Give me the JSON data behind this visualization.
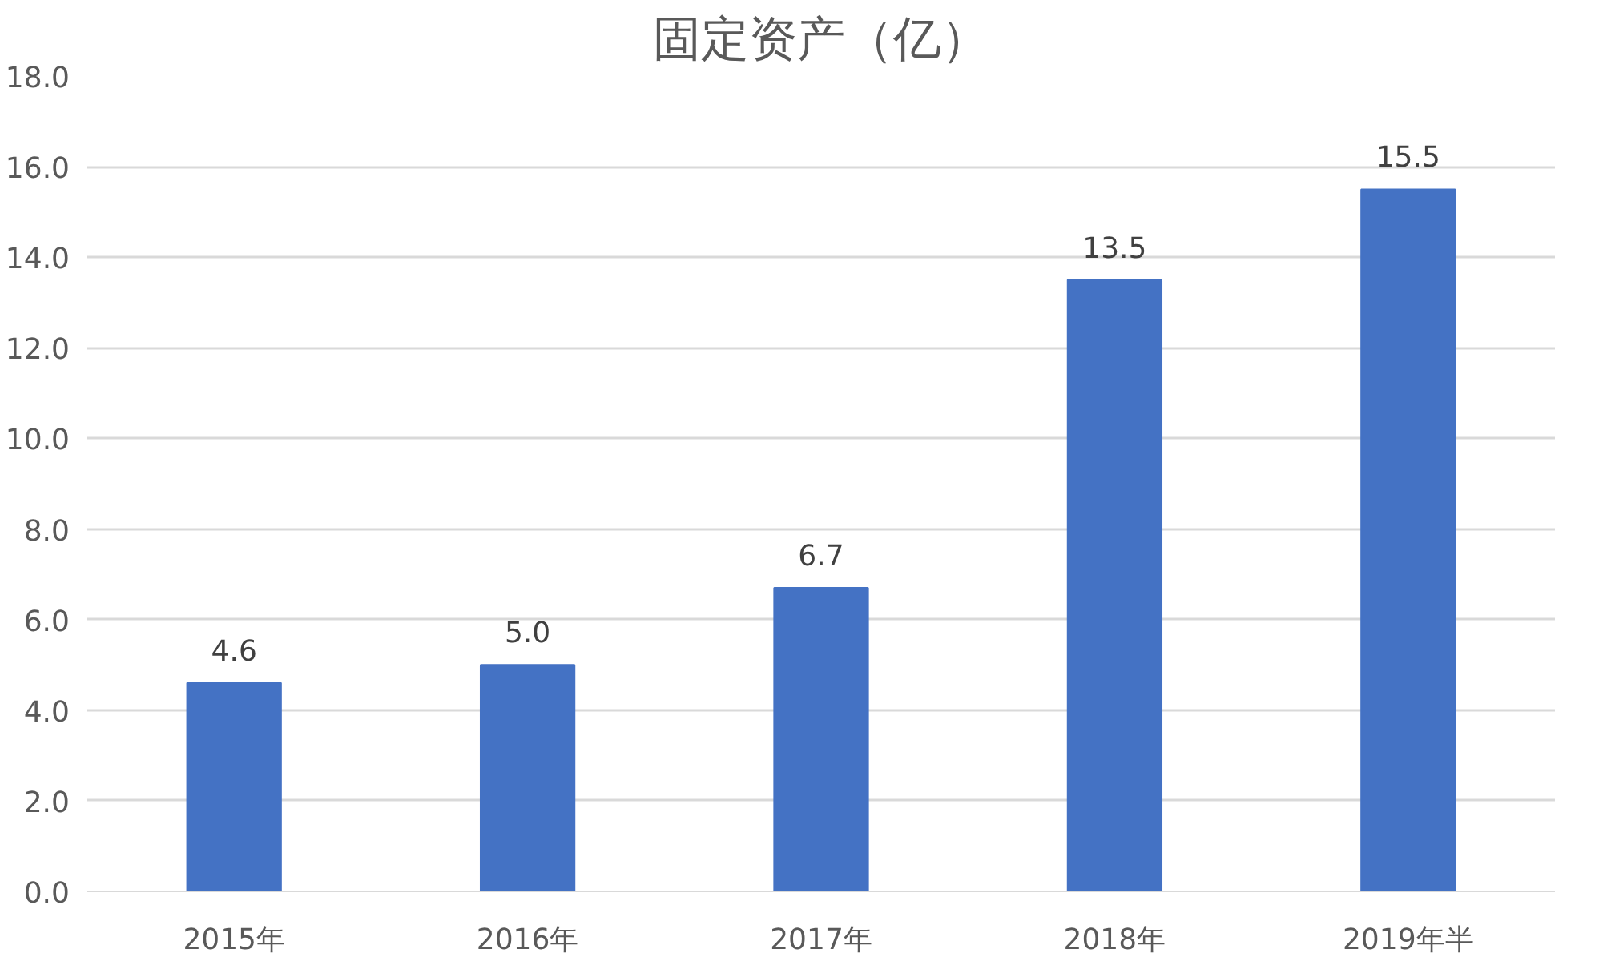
{
  "chart_data": {
    "type": "bar",
    "title": "固定资产（亿）",
    "categories": [
      "2015年",
      "2016年",
      "2017年",
      "2018年",
      "2019年半"
    ],
    "values": [
      4.6,
      5.0,
      6.7,
      13.5,
      15.5
    ],
    "value_labels": [
      "4.6",
      "5.0",
      "6.7",
      "13.5",
      "15.5"
    ],
    "color": "#4472c4",
    "ylim": [
      0,
      18
    ],
    "yticks": [
      {
        "value": 0,
        "label": "0.0"
      },
      {
        "value": 2,
        "label": "2.0"
      },
      {
        "value": 4,
        "label": "4.0"
      },
      {
        "value": 6,
        "label": "6.0"
      },
      {
        "value": 8,
        "label": "8.0"
      },
      {
        "value": 10,
        "label": "10.0"
      },
      {
        "value": 12,
        "label": "12.0"
      },
      {
        "value": 14,
        "label": "14.0"
      },
      {
        "value": 16,
        "label": "16.0"
      },
      {
        "value": 18,
        "label": "18.0"
      }
    ],
    "grid": "y"
  }
}
